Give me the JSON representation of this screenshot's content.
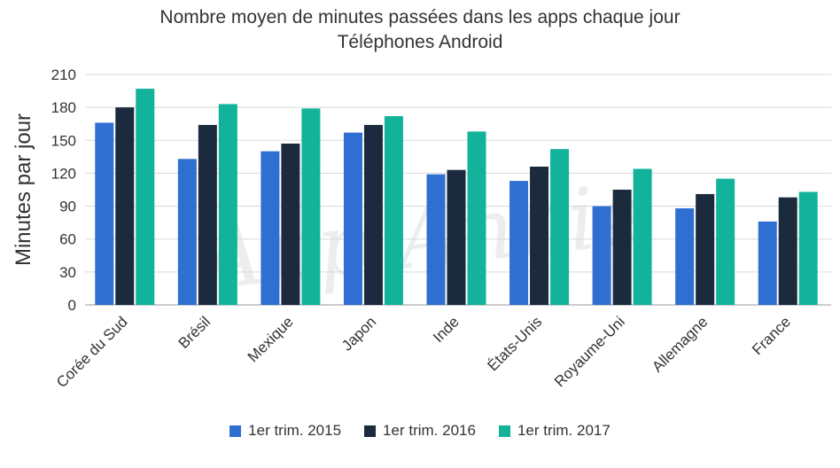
{
  "chart_data": {
    "type": "bar",
    "title": "Nombre moyen de minutes passées dans les apps chaque jour",
    "subtitle": "Téléphones Android",
    "xlabel": "",
    "ylabel": "Minutes par jour",
    "ylim": [
      0,
      210
    ],
    "yticks": [
      "0",
      "30",
      "60",
      "90",
      "120",
      "150",
      "180",
      "210"
    ],
    "grid": true,
    "legend_position": "bottom",
    "watermark": "App Annie",
    "categories": [
      "Corée du Sud",
      "Brésil",
      "Mexique",
      "Japon",
      "Inde",
      "États-Unis",
      "Royaume-Uni",
      "Allemagne",
      "France"
    ],
    "series": [
      {
        "name": "1er trim. 2015",
        "color": "#2f6fd1",
        "values": [
          166,
          133,
          140,
          157,
          119,
          113,
          90,
          88,
          76
        ]
      },
      {
        "name": "1er trim. 2016",
        "color": "#1b2a3d",
        "values": [
          180,
          164,
          147,
          164,
          123,
          126,
          105,
          101,
          98
        ]
      },
      {
        "name": "1er trim. 2017",
        "color": "#12b39a",
        "values": [
          197,
          183,
          179,
          172,
          158,
          142,
          124,
          115,
          103
        ]
      }
    ]
  }
}
